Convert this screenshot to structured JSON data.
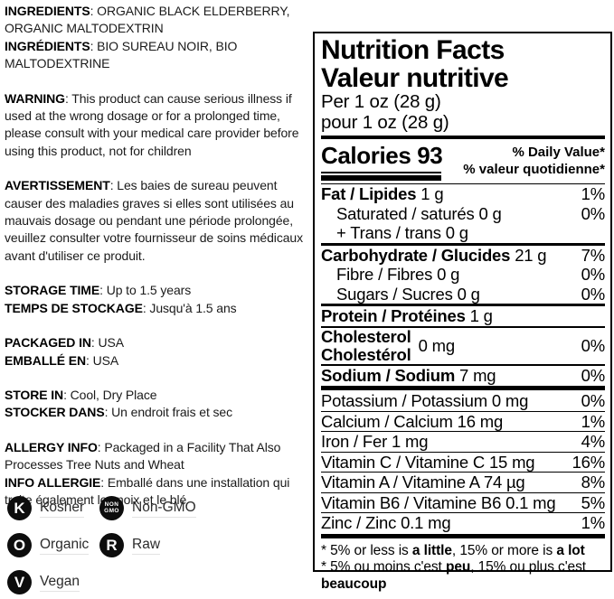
{
  "colors": {
    "ink": "#000000",
    "paper": "#ffffff",
    "badge": "#0d0d0d",
    "label_underline": "#e3e3e3"
  },
  "left": {
    "sections": [
      {
        "items": [
          {
            "label": "INGREDIENTS",
            "text": ": ORGANIC BLACK ELDERBERRY, ORGANIC MALTODEXTRIN"
          },
          {
            "label": "INGRÉDIENTS",
            "text": ": BIO SUREAU NOIR, BIO MALTODEXTRINE"
          }
        ]
      },
      {
        "items": [
          {
            "label": "WARNING",
            "text": ": This product can cause serious illness if used at the wrong dosage or for a prolonged time, please consult with your medical care provider before using this product, not for children"
          }
        ]
      },
      {
        "items": [
          {
            "label": "AVERTISSEMENT",
            "text": ": Les baies de sureau peuvent causer des maladies graves si elles sont utilisées au mauvais dosage ou pendant une période prolongée, veuillez consulter votre fournisseur de soins médicaux avant d'utiliser ce produit."
          }
        ]
      },
      {
        "items": [
          {
            "label": "STORAGE TIME",
            "text": ": Up to 1.5 years"
          },
          {
            "label": "TEMPS DE STOCKAGE",
            "text": ": Jusqu'à 1.5 ans"
          }
        ]
      },
      {
        "items": [
          {
            "label": "PACKAGED IN",
            "text": ": USA"
          },
          {
            "label": "EMBALLÉ EN",
            "text": ": USA"
          }
        ]
      },
      {
        "items": [
          {
            "label": "STORE IN",
            "text": ": Cool, Dry Place"
          },
          {
            "label": "STOCKER DANS",
            "text": ": Un endroit frais et sec"
          }
        ]
      },
      {
        "items": [
          {
            "label": "ALLERGY INFO",
            "text": ": Packaged in a Facility That Also Processes Tree Nuts and Wheat"
          },
          {
            "label": "INFO ALLERGIE",
            "text": ": Emballé dans une installation qui traite également les noix et le blé"
          }
        ]
      }
    ],
    "certifications": [
      {
        "glyph": "K",
        "label": "Kosher"
      },
      {
        "glyph_lines": {
          "top": "NON",
          "bottom": "GMO"
        },
        "label": "Non-GMO"
      },
      {
        "glyph": "O",
        "label": "Organic"
      },
      {
        "glyph": "R",
        "label": "Raw"
      },
      {
        "glyph": "V",
        "label": "Vegan"
      }
    ]
  },
  "nutrition": {
    "title_en": "Nutrition Facts",
    "title_fr": "Valeur nutritive",
    "serving_en": "Per 1 oz (28 g)",
    "serving_fr": "pour 1 oz (28 g)",
    "calories_label": "Calories",
    "calories_value": "93",
    "dv_header_en": "% Daily Value*",
    "dv_header_fr": "% valeur quotidienne*",
    "rows": [
      {
        "name": "Fat / Lipides",
        "amount": "1 g",
        "dv": "1%"
      },
      {
        "name": "Saturated / saturés",
        "amount": "0 g",
        "dv": "0%"
      },
      {
        "name": "+ Trans / trans",
        "amount": "0 g",
        "dv": ""
      },
      {
        "name": "Carbohydrate / Glucides",
        "amount": "21 g",
        "dv": "7%"
      },
      {
        "name": "Fibre / Fibres",
        "amount": "0 g",
        "dv": "0%"
      },
      {
        "name": "Sugars / Sucres",
        "amount": "0 g",
        "dv": "0%"
      },
      {
        "name": "Protein / Protéines",
        "amount": "1 g",
        "dv": ""
      },
      {
        "name_line1": "Cholesterol",
        "name_line2": "Cholestérol",
        "amount": "0 mg",
        "dv": "0%"
      },
      {
        "name": "Sodium / Sodium",
        "amount": "7 mg",
        "dv": "0%"
      },
      {
        "name": "Potassium / Potassium",
        "amount": "0 mg",
        "dv": "0%"
      },
      {
        "name": "Calcium / Calcium",
        "amount": "16 mg",
        "dv": "1%"
      },
      {
        "name": "Iron / Fer",
        "amount": "1 mg",
        "dv": "4%"
      },
      {
        "name": "Vitamin C / Vitamine C",
        "amount": "15 mg",
        "dv": "16%"
      },
      {
        "name": "Vitamin A / Vitamine A",
        "amount": "74 µg",
        "dv": "8%"
      },
      {
        "name": "Vitamin B6 / Vitamine B6",
        "amount": "0.1 mg",
        "dv": "5%"
      },
      {
        "name": "Zinc / Zinc",
        "amount": "0.1 mg",
        "dv": "1%"
      }
    ],
    "footnote_en": {
      "p0": "* 5% or less is ",
      "b0": "a little",
      "p1": ", 15% or more is ",
      "b1": "a lot"
    },
    "footnote_fr": {
      "p0": "* 5% ou moins c'est ",
      "b0": "peu",
      "p1": ", 15% ou plus c'est ",
      "b1": "beaucoup"
    }
  }
}
